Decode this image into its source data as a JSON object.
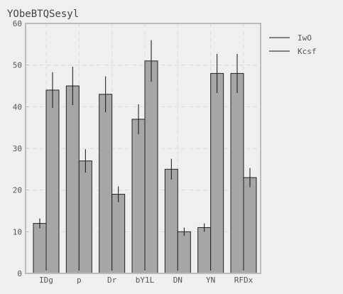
{
  "chart_data": {
    "type": "bar",
    "title": "YObeBTQSesyl",
    "categories": [
      "IDg",
      "p",
      "Dr",
      "bY1L",
      "DN",
      "YN",
      "RFDx"
    ],
    "series": [
      {
        "name": "IwO",
        "values": [
          12,
          45,
          43,
          37,
          25,
          11,
          48
        ],
        "errors": [
          1.2,
          4.6,
          4.3,
          3.6,
          2.5,
          1.0,
          4.7
        ]
      },
      {
        "name": "Kcsf",
        "values": [
          44,
          27,
          19,
          51,
          10,
          48,
          23
        ],
        "errors": [
          4.3,
          2.8,
          1.9,
          5.0,
          1.0,
          4.7,
          2.3
        ]
      }
    ],
    "ylim": [
      0,
      60
    ],
    "yticks": [
      0,
      10,
      20,
      30,
      40,
      50,
      60
    ],
    "grid": true,
    "legend_position": "right-outside-top",
    "colors": {
      "bar": "#a6a6a6",
      "bar_edge": "#222222",
      "grid": "#dddddd",
      "axes": "#bcbcbc",
      "background": "#efefef"
    }
  }
}
